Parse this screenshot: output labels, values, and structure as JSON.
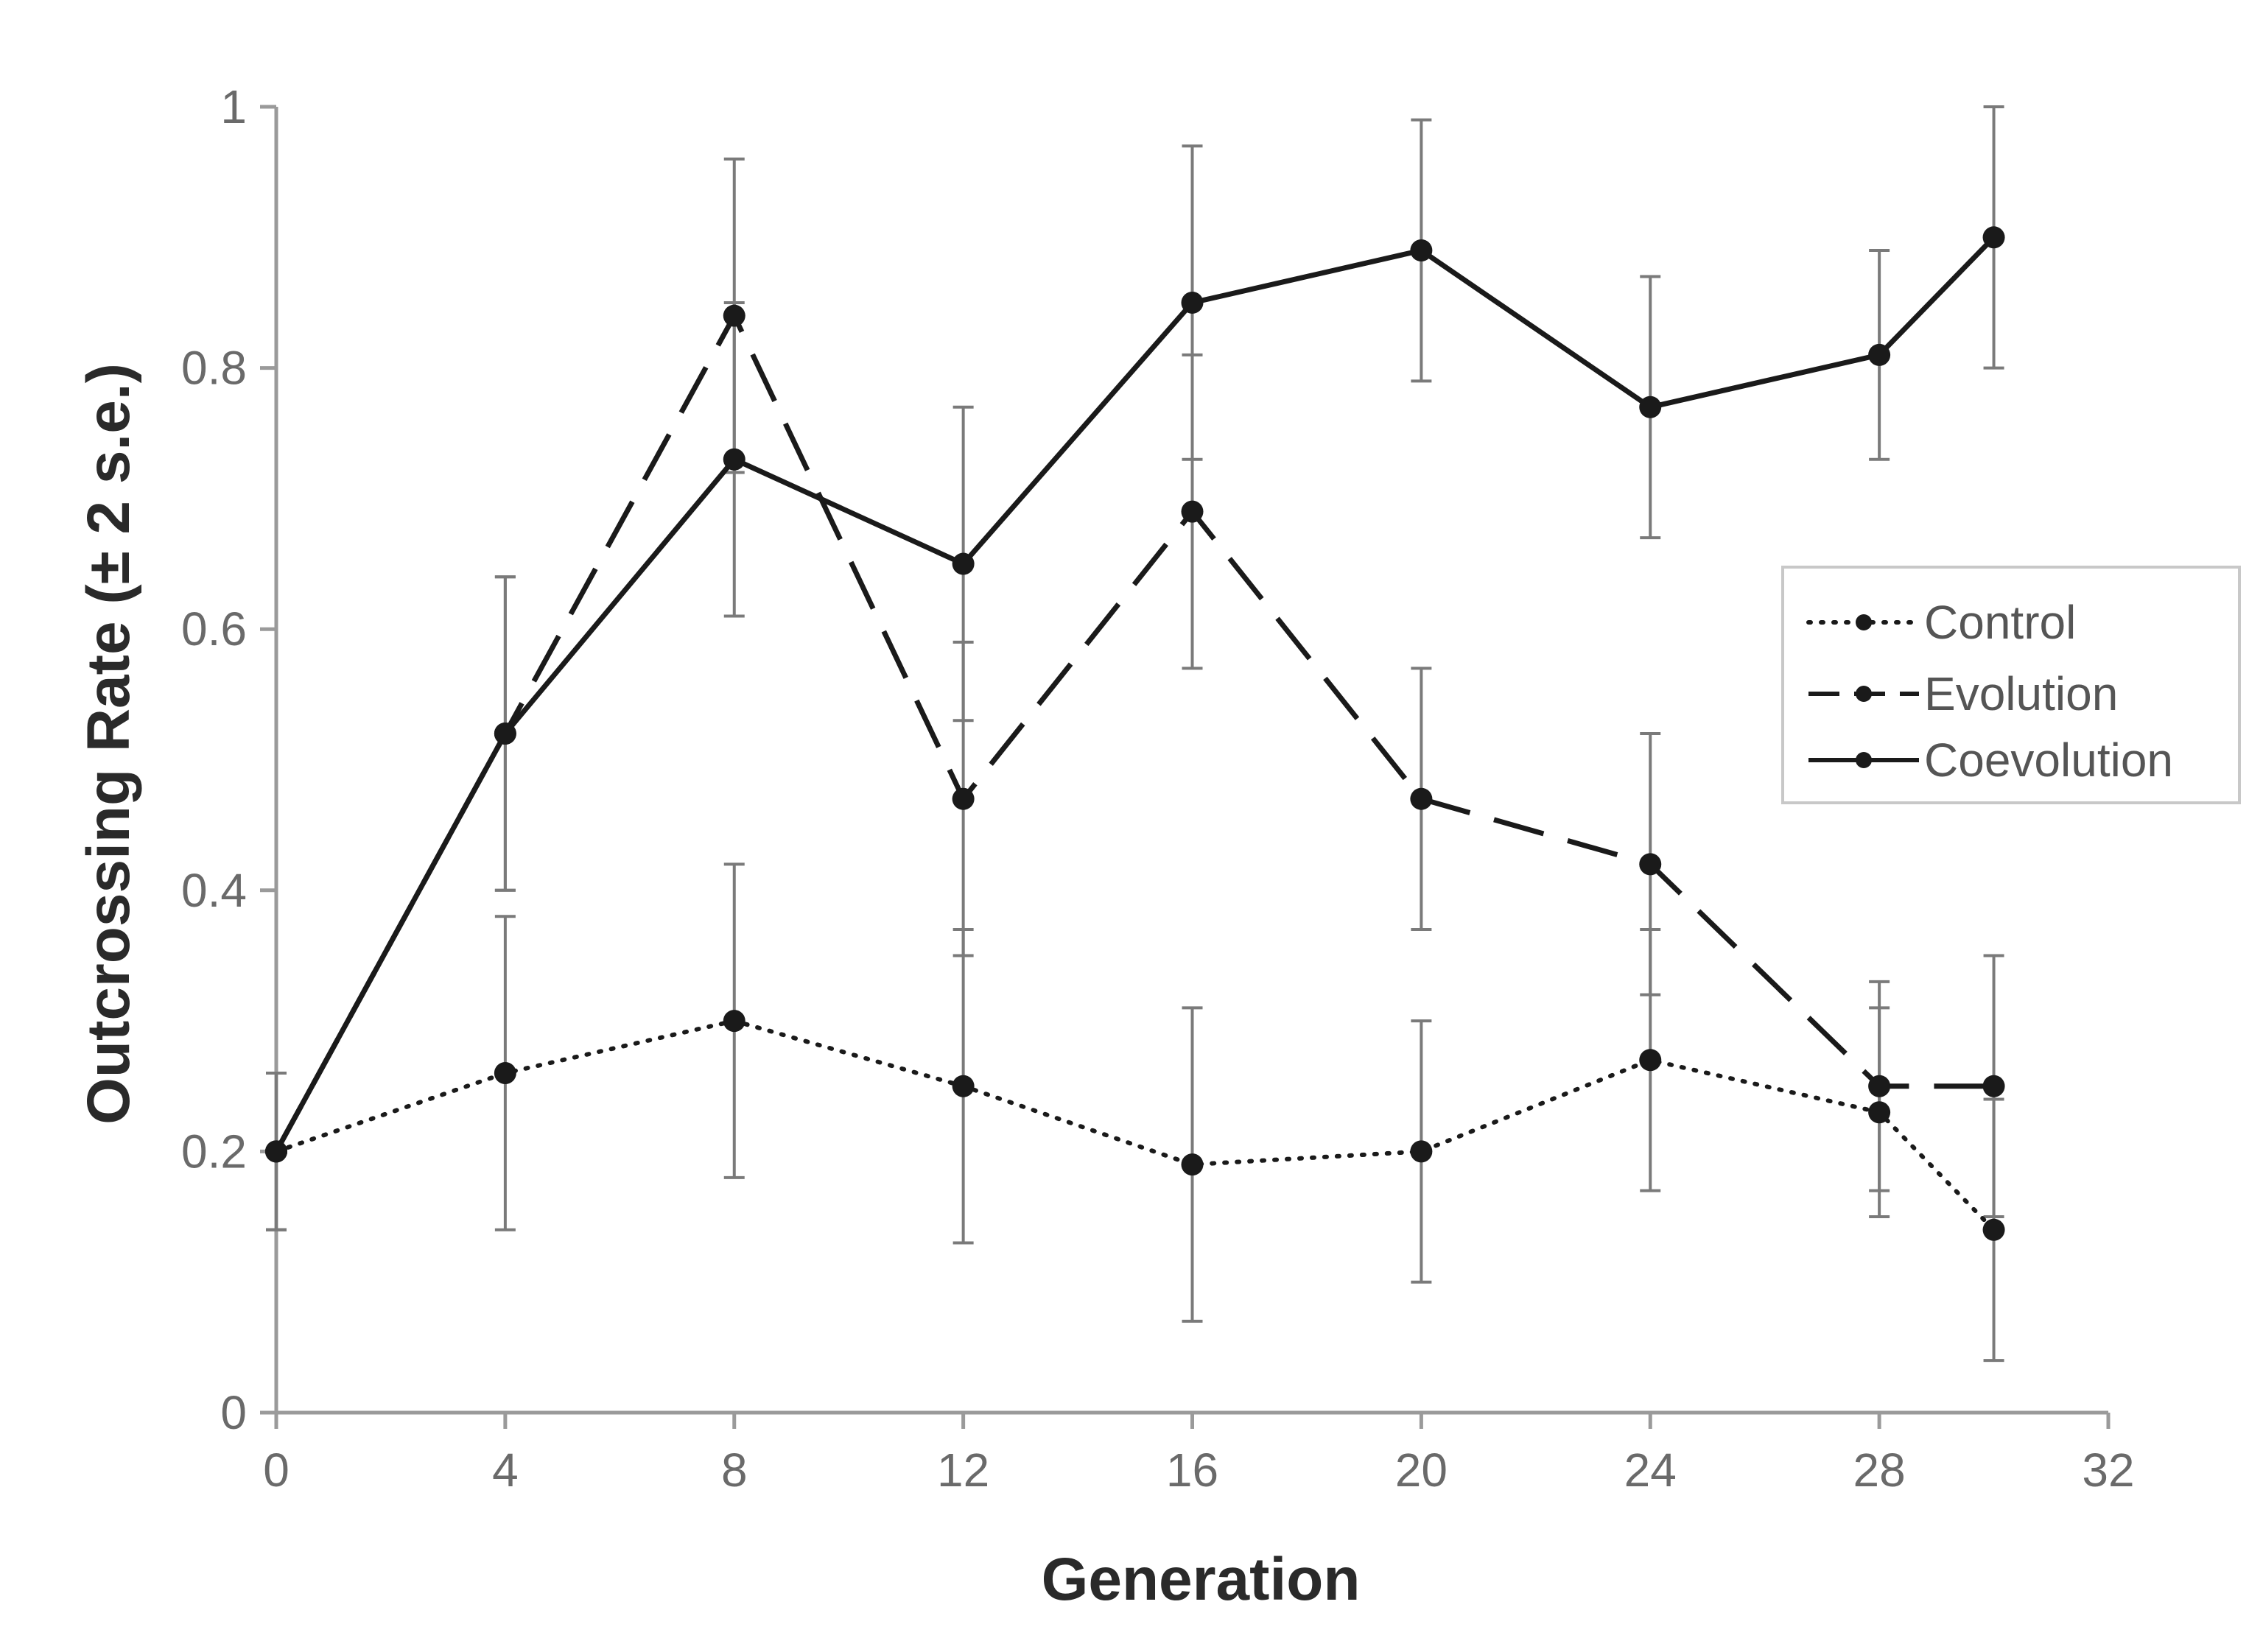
{
  "chart_data": {
    "type": "line",
    "title": "",
    "xlabel": "Generation",
    "ylabel": "Outcrossing Rate (± 2 s.e.)",
    "xlim": [
      0,
      32
    ],
    "ylim": [
      0,
      1
    ],
    "x_ticks": [
      "0",
      "4",
      "8",
      "12",
      "16",
      "20",
      "24",
      "28",
      "32"
    ],
    "y_ticks": [
      "0",
      "0.2",
      "0.4",
      "0.6",
      "0.8",
      "1"
    ],
    "grid": false,
    "legend_position": "right",
    "series": [
      {
        "name": "Control",
        "line_style": "dotted",
        "x": [
          0,
          4,
          8,
          12,
          16,
          20,
          24,
          28,
          30
        ],
        "y": [
          0.2,
          0.26,
          0.3,
          0.25,
          0.19,
          0.2,
          0.27,
          0.23,
          0.14
        ],
        "err": [
          0.06,
          0.12,
          0.12,
          0.12,
          0.12,
          0.1,
          0.1,
          0.08,
          0.1
        ]
      },
      {
        "name": "Evolution",
        "line_style": "dashed",
        "x": [
          0,
          4,
          8,
          12,
          16,
          20,
          24,
          28,
          30
        ],
        "y": [
          0.2,
          0.52,
          0.84,
          0.47,
          0.69,
          0.47,
          0.42,
          0.25,
          0.25
        ],
        "err": [
          0.06,
          0.12,
          0.12,
          0.12,
          0.12,
          0.1,
          0.1,
          0.08,
          0.1
        ]
      },
      {
        "name": "Coevolution",
        "line_style": "solid",
        "x": [
          0,
          4,
          8,
          12,
          16,
          20,
          24,
          28,
          30
        ],
        "y": [
          0.2,
          0.52,
          0.73,
          0.65,
          0.85,
          0.89,
          0.77,
          0.81,
          0.9
        ],
        "err": [
          0.06,
          0.12,
          0.12,
          0.12,
          0.12,
          0.1,
          0.1,
          0.08,
          0.1
        ]
      }
    ],
    "colors": {
      "axis": "#9a9a9a",
      "line": "#1a1a1a",
      "error_bar": "#7a7a7a",
      "legend_border": "#c8c8c8"
    }
  }
}
